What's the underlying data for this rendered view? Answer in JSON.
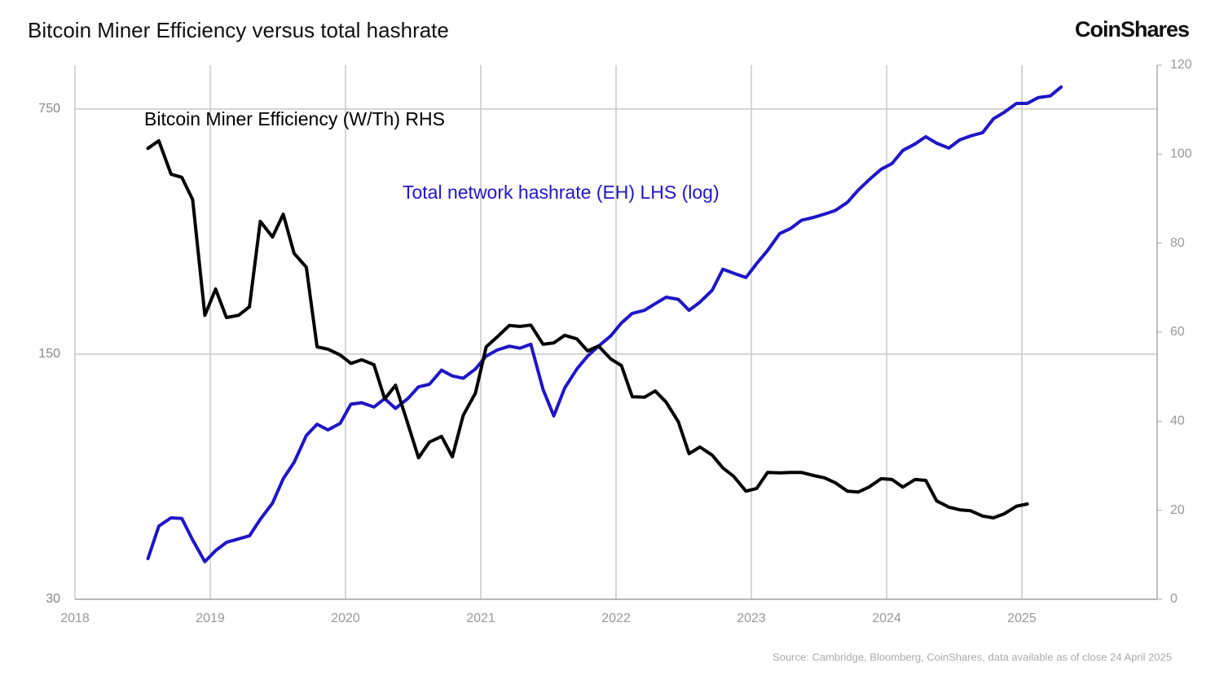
{
  "chart_data": {
    "type": "line",
    "title": "Bitcoin Miner Efficiency versus total hashrate",
    "brand": "CoinShares",
    "source": "Source: Cambridge, Bloomberg, CoinShares, data available as of close 24 April 2025",
    "xlim": [
      2018,
      2026
    ],
    "xticks": [
      2018,
      2019,
      2020,
      2021,
      2022,
      2023,
      2024,
      2025
    ],
    "ylim": [
      30,
      1000
    ],
    "yticks": [
      30,
      150,
      750
    ],
    "ylog": true,
    "y2lim": [
      0,
      120
    ],
    "y2ticks": [
      0,
      20,
      40,
      60,
      80,
      100,
      120
    ],
    "grid": true,
    "x": [
      2018.54,
      2018.62,
      2018.71,
      2018.79,
      2018.87,
      2018.96,
      2019.04,
      2019.12,
      2019.21,
      2019.29,
      2019.37,
      2019.46,
      2019.54,
      2019.62,
      2019.71,
      2019.79,
      2019.87,
      2019.96,
      2020.04,
      2020.12,
      2020.21,
      2020.29,
      2020.37,
      2020.46,
      2020.54,
      2020.62,
      2020.71,
      2020.79,
      2020.87,
      2020.96,
      2021.04,
      2021.12,
      2021.21,
      2021.29,
      2021.37,
      2021.46,
      2021.54,
      2021.62,
      2021.71,
      2021.79,
      2021.87,
      2021.96,
      2022.04,
      2022.12,
      2022.21,
      2022.29,
      2022.37,
      2022.46,
      2022.54,
      2022.62,
      2022.71,
      2022.79,
      2022.87,
      2022.96,
      2023.04,
      2023.12,
      2023.21,
      2023.29,
      2023.37,
      2023.46,
      2023.54,
      2023.62,
      2023.71,
      2023.79,
      2023.87,
      2023.96,
      2024.04,
      2024.12,
      2024.21,
      2024.29,
      2024.37,
      2024.46,
      2024.54,
      2024.62,
      2024.71,
      2024.79,
      2024.87,
      2024.96,
      2025.04,
      2025.12,
      2025.21,
      2025.29
    ],
    "series": [
      {
        "name": "Total network hashrate (EH) LHS (log)",
        "color": "#1f16c8",
        "axis": "y",
        "values": [
          39.2,
          48.5,
          51.2,
          51,
          44.3,
          38.4,
          41.3,
          43.6,
          44.6,
          45.5,
          50.7,
          56.4,
          66.2,
          73.7,
          87.9,
          94.7,
          91.2,
          95.2,
          108,
          109,
          106,
          112,
          105,
          112,
          121,
          123,
          135,
          130,
          128,
          136,
          148,
          154,
          158,
          156,
          160,
          119,
          100,
          120,
          136,
          148,
          158,
          169,
          184,
          196,
          200,
          209,
          218,
          215,
          200,
          211,
          228,
          262,
          255,
          248,
          272,
          296,
          331,
          342,
          361,
          368,
          376,
          385,
          406,
          440,
          471,
          505,
          524,
          571,
          596,
          625,
          599,
          580,
          612,
          628,
          642,
          703,
          734,
          778,
          778,
          808,
          817,
          866
        ]
      },
      {
        "name": "Bitcoin Miner Efficiency (W/Th) RHS",
        "color": "#000000",
        "axis": "y2",
        "values": [
          101.3,
          103,
          95.5,
          94.8,
          89.8,
          63.8,
          69.7,
          63.3,
          63.8,
          65.7,
          84.9,
          81.4,
          86.5,
          77.7,
          74.6,
          56.7,
          56.2,
          54.9,
          53,
          53.8,
          52.7,
          45,
          48.1,
          39.5,
          31.8,
          35.3,
          36.6,
          32,
          41.3,
          46.3,
          56.7,
          58.9,
          61.5,
          61.3,
          61.6,
          57.3,
          57.6,
          59.3,
          58.5,
          55.8,
          56.9,
          54,
          52.5,
          45.5,
          45.4,
          46.8,
          44.3,
          39.9,
          32.7,
          34.2,
          32.4,
          29.5,
          27.6,
          24.3,
          24.9,
          28.5,
          28.4,
          28.5,
          28.5,
          27.8,
          27.3,
          26.2,
          24.3,
          24.1,
          25.2,
          27.1,
          26.9,
          25.2,
          26.9,
          26.7,
          22.1,
          20.7,
          20.1,
          19.9,
          18.7,
          18.3,
          19.2,
          20.9,
          21.4,
          null,
          null,
          null
        ]
      }
    ]
  }
}
